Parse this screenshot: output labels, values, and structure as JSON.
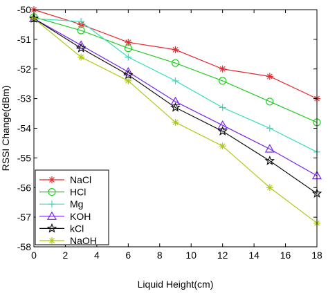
{
  "chart_data": {
    "type": "line",
    "title": "",
    "xlabel": "Liquid Height(cm)",
    "ylabel": "RSSI Change(dBm)",
    "xlim": [
      0,
      18
    ],
    "ylim": [
      -58,
      -50
    ],
    "xticks": [
      "0",
      "2",
      "4",
      "6",
      "8",
      "10",
      "12",
      "14",
      "16",
      "18"
    ],
    "yticks": [
      "-50",
      "-51",
      "-52",
      "-53",
      "-54",
      "-55",
      "-56",
      "-57",
      "-58"
    ],
    "grid": false,
    "legend_position": "lower-left",
    "x": [
      0,
      3,
      6,
      9,
      12,
      15,
      18
    ],
    "series": [
      {
        "name": "NaCl",
        "color": "#e8262c",
        "marker": "asterisk",
        "values": [
          -50.0,
          -50.5,
          -51.1,
          -51.35,
          -52.0,
          -52.25,
          -53.0
        ]
      },
      {
        "name": "HCl",
        "color": "#22cc22",
        "marker": "circle",
        "values": [
          -50.25,
          -50.7,
          -51.3,
          -51.8,
          -52.4,
          -53.1,
          -53.8
        ]
      },
      {
        "name": "Mg",
        "color": "#33ddbb",
        "marker": "plus",
        "values": [
          -50.3,
          -50.4,
          -51.6,
          -52.4,
          -53.3,
          -54.0,
          -54.8
        ]
      },
      {
        "name": "KOH",
        "color": "#7722ee",
        "marker": "triangle",
        "values": [
          -50.3,
          -51.2,
          -52.1,
          -53.1,
          -53.9,
          -54.7,
          -55.6
        ]
      },
      {
        "name": "kCl",
        "color": "#111111",
        "marker": "star",
        "values": [
          -50.3,
          -51.3,
          -52.2,
          -53.3,
          -54.1,
          -55.1,
          -56.2
        ]
      },
      {
        "name": "NaOH",
        "color": "#aacc11",
        "marker": "asterisk",
        "values": [
          -50.3,
          -51.6,
          -52.4,
          -53.8,
          -54.6,
          -56.0,
          -57.2
        ]
      }
    ]
  }
}
